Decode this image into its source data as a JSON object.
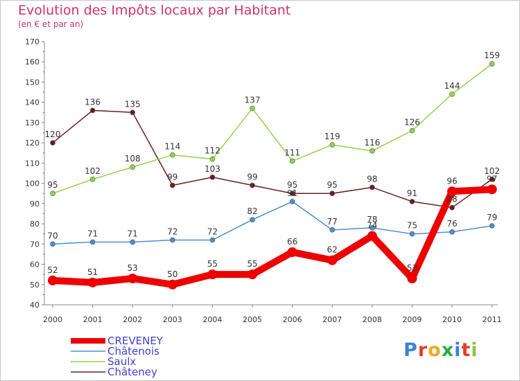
{
  "chart_data": {
    "type": "line",
    "title": "Evolution des Impôts locaux par Habitant",
    "subtitle": "(en € et par an)",
    "xlabel": "",
    "ylabel": "",
    "x": [
      "2000",
      "2001",
      "2002",
      "2003",
      "2004",
      "2005",
      "2006",
      "2007",
      "2008",
      "2009",
      "2010",
      "2011"
    ],
    "ylim": [
      40,
      170
    ],
    "yticks": [
      40,
      50,
      60,
      70,
      80,
      90,
      100,
      110,
      120,
      130,
      140,
      150,
      160,
      170
    ],
    "grid": "none",
    "legend": "bottom-left",
    "series": [
      {
        "name": "CREVENEY",
        "color": "#ee0000",
        "values": [
          52,
          51,
          53,
          50,
          55,
          55,
          66,
          62,
          74,
          53,
          96,
          97
        ]
      },
      {
        "name": "Châtenois",
        "color": "#4a8fd0",
        "values": [
          70,
          71,
          71,
          72,
          72,
          82,
          91,
          77,
          78,
          75,
          76,
          79
        ]
      },
      {
        "name": "Saulx",
        "color": "#8fd44a",
        "values": [
          95,
          102,
          108,
          114,
          112,
          137,
          111,
          119,
          116,
          126,
          144,
          159
        ]
      },
      {
        "name": "Châteney",
        "color": "#6b1c1c",
        "values": [
          120,
          136,
          135,
          99,
          103,
          99,
          95,
          95,
          98,
          91,
          88,
          102
        ]
      }
    ]
  },
  "logo": {
    "letters": [
      "P",
      "r",
      "o",
      "x",
      "i",
      "t",
      "i"
    ],
    "colors": [
      "#3b82d6",
      "#e63b2e",
      "#f5a623",
      "#2ea84a",
      "#3b82d6",
      "#e63b2e",
      "#8cc63f"
    ]
  }
}
